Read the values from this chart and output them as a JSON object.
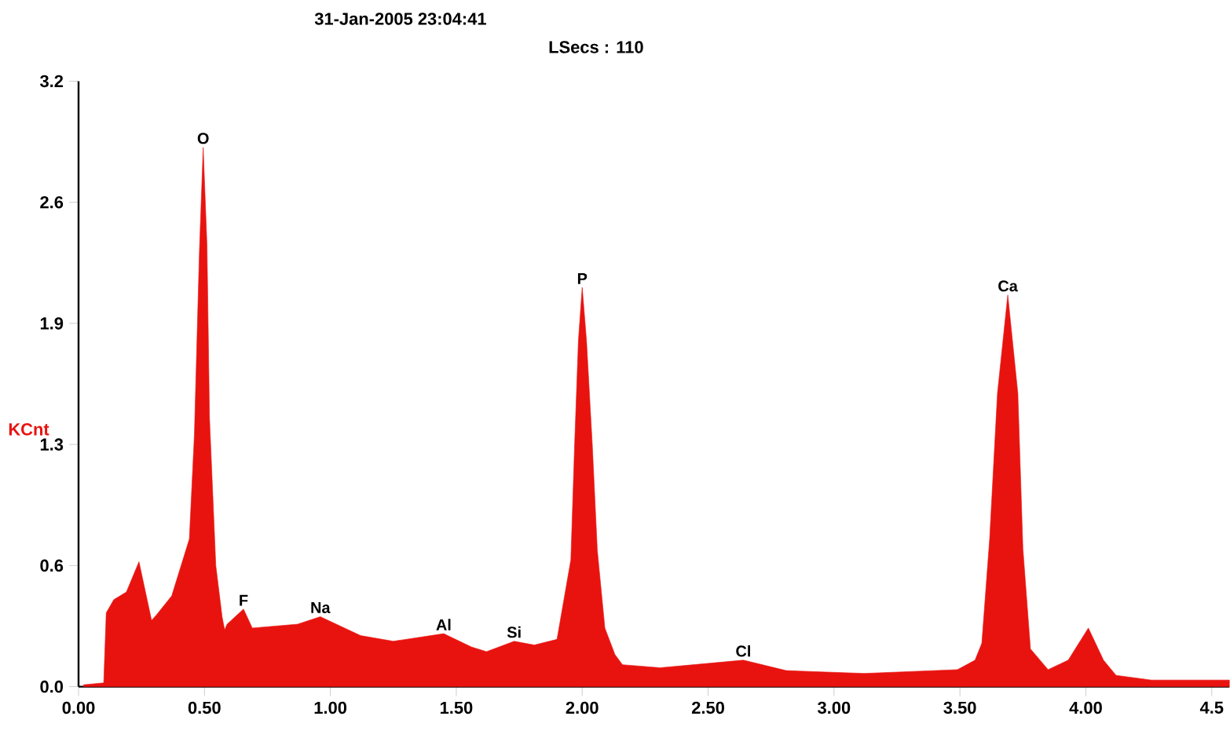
{
  "chart_data": {
    "type": "area",
    "ylabel": "KCnt",
    "xlim": [
      0,
      4.57
    ],
    "ylim": [
      0,
      3.2
    ],
    "xticks": [
      {
        "value": 0,
        "label": "0.00"
      },
      {
        "value": 0.5,
        "label": "0.50"
      },
      {
        "value": 1,
        "label": "1.00"
      },
      {
        "value": 1.5,
        "label": "1.50"
      },
      {
        "value": 2,
        "label": "2.00"
      },
      {
        "value": 2.5,
        "label": "2.50"
      },
      {
        "value": 3,
        "label": "3.00"
      },
      {
        "value": 3.5,
        "label": "3.50"
      },
      {
        "value": 4,
        "label": "4.00"
      },
      {
        "value": 4.5,
        "label": "4.5"
      }
    ],
    "yticks": [
      {
        "value": 0,
        "label": "0.0"
      },
      {
        "value": 0.64,
        "label": "0.6"
      },
      {
        "value": 1.28,
        "label": "1.3"
      },
      {
        "value": 1.92,
        "label": "1.9"
      },
      {
        "value": 2.56,
        "label": "2.6"
      },
      {
        "value": 3.2,
        "label": "3.2"
      }
    ],
    "series": [
      {
        "color": "#e8130f",
        "x": [
          0.02,
          0.1,
          0.11,
          0.14,
          0.19,
          0.24,
          0.29,
          0.31,
          0.37,
          0.44,
          0.46,
          0.48,
          0.495,
          0.51,
          0.52,
          0.545,
          0.57,
          0.58,
          0.59,
          0.655,
          0.69,
          0.87,
          0.96,
          1.12,
          1.25,
          1.45,
          1.56,
          1.62,
          1.73,
          1.81,
          1.9,
          1.955,
          1.97,
          1.985,
          2.0,
          2.017,
          2.04,
          2.06,
          2.09,
          2.13,
          2.16,
          2.31,
          2.64,
          2.81,
          3.12,
          3.49,
          3.56,
          3.587,
          3.618,
          3.649,
          3.69,
          3.73,
          3.75,
          3.78,
          3.85,
          3.93,
          4.01,
          4.07,
          4.12,
          4.26,
          4.57
        ],
        "values": [
          0.01,
          0.02,
          0.39,
          0.46,
          0.5,
          0.66,
          0.35,
          0.38,
          0.48,
          0.78,
          1.33,
          2.3,
          2.85,
          2.33,
          1.42,
          0.64,
          0.37,
          0.3,
          0.33,
          0.41,
          0.31,
          0.33,
          0.37,
          0.27,
          0.24,
          0.28,
          0.21,
          0.185,
          0.24,
          0.22,
          0.25,
          0.67,
          1.28,
          1.83,
          2.11,
          1.83,
          1.28,
          0.72,
          0.31,
          0.17,
          0.116,
          0.1,
          0.14,
          0.085,
          0.07,
          0.09,
          0.14,
          0.23,
          0.78,
          1.55,
          2.07,
          1.55,
          0.73,
          0.2,
          0.09,
          0.14,
          0.31,
          0.14,
          0.06,
          0.035,
          0.035
        ]
      }
    ],
    "annotations": [
      "31-Jan-2005 23:04:41",
      "LSecs : 110",
      {
        "text": "O",
        "x": 0.495,
        "y": 2.85
      },
      {
        "text": "F",
        "x": 0.655,
        "y": 0.41
      },
      {
        "text": "Na",
        "x": 0.96,
        "y": 0.37
      },
      {
        "text": "Al",
        "x": 1.45,
        "y": 0.28
      },
      {
        "text": "Si",
        "x": 1.73,
        "y": 0.24
      },
      {
        "text": "P",
        "x": 2.0,
        "y": 2.11
      },
      {
        "text": "Cl",
        "x": 2.64,
        "y": 0.14
      },
      {
        "text": "Ca",
        "x": 3.69,
        "y": 2.07
      }
    ]
  }
}
